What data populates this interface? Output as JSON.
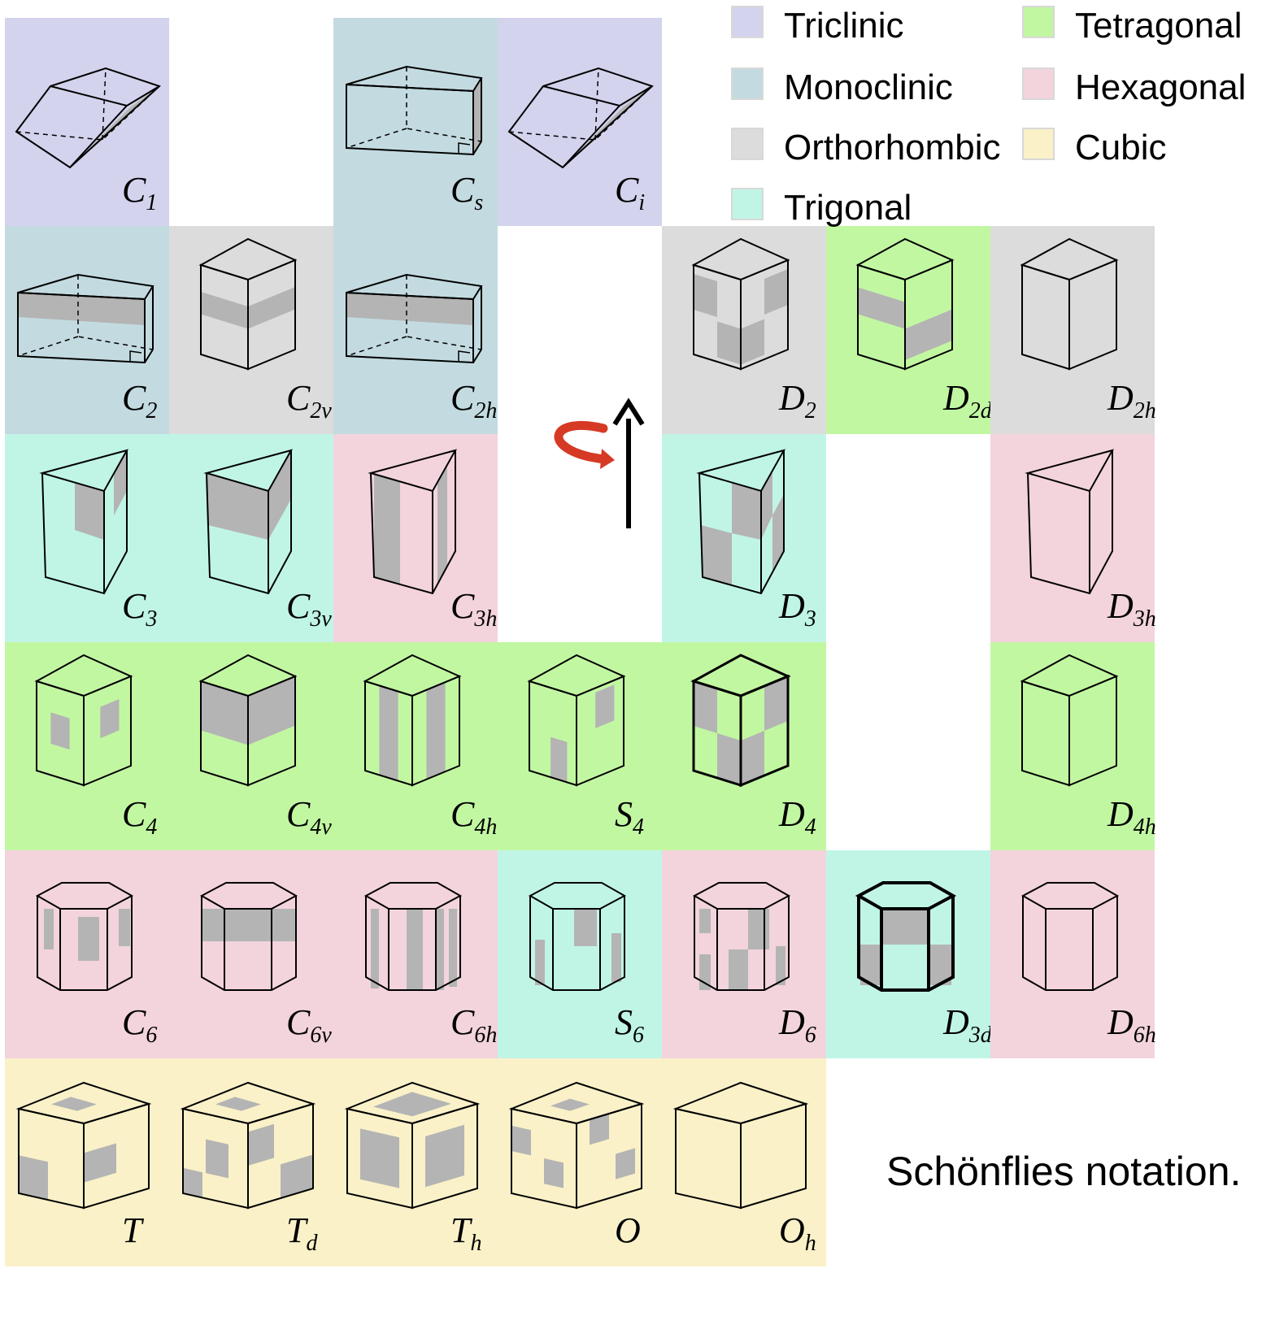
{
  "legend": [
    {
      "label": "Triclinic",
      "color": "#d3d3ee"
    },
    {
      "label": "Monoclinic",
      "color": "#c3dbe0"
    },
    {
      "label": "Orthorhombic",
      "color": "#dcdcdc"
    },
    {
      "label": "Trigonal",
      "color": "#c0f5e6"
    },
    {
      "label": "Tetragonal",
      "color": "#c2f7a2"
    },
    {
      "label": "Hexagonal",
      "color": "#f3d4dc"
    },
    {
      "label": "Cubic",
      "color": "#faf1c8"
    }
  ],
  "colors": {
    "triclinic": "#d3d3ee",
    "monoclinic": "#c3dbe0",
    "orthorhombic": "#dcdcdc",
    "trigonal": "#c0f5e6",
    "tetragonal": "#c2f7a2",
    "hexagonal": "#f3d4dc",
    "cubic": "#faf1c8",
    "shade": "#b4b4b4",
    "arrow_curl": "#d63a25"
  },
  "caption": "Schönflies notation.",
  "cells": [
    {
      "id": "C1",
      "main": "C",
      "sub": "1",
      "system": "triclinic",
      "shape": "rhomb"
    },
    {
      "id": "Cs",
      "main": "C",
      "sub": "s",
      "system": "monoclinic",
      "shape": "box-dashed"
    },
    {
      "id": "Ci",
      "main": "C",
      "sub": "i",
      "system": "triclinic",
      "shape": "rhomb"
    },
    {
      "id": "C2",
      "main": "C",
      "sub": "2",
      "system": "monoclinic",
      "shape": "box-dashed"
    },
    {
      "id": "C2v",
      "main": "C",
      "sub": "2v",
      "system": "orthorhombic",
      "shape": "cube"
    },
    {
      "id": "C2h",
      "main": "C",
      "sub": "2h",
      "system": "monoclinic",
      "shape": "box-dashed"
    },
    {
      "id": "D2",
      "main": "D",
      "sub": "2",
      "system": "orthorhombic",
      "shape": "cube"
    },
    {
      "id": "D2d",
      "main": "D",
      "sub": "2d",
      "system": "tetragonal",
      "shape": "cube"
    },
    {
      "id": "D2h",
      "main": "D",
      "sub": "2h",
      "system": "orthorhombic",
      "shape": "cube"
    },
    {
      "id": "C3",
      "main": "C",
      "sub": "3",
      "system": "trigonal",
      "shape": "prism"
    },
    {
      "id": "C3v",
      "main": "C",
      "sub": "3v",
      "system": "trigonal",
      "shape": "prism"
    },
    {
      "id": "C3h",
      "main": "C",
      "sub": "3h",
      "system": "hexagonal",
      "shape": "prism"
    },
    {
      "id": "D3",
      "main": "D",
      "sub": "3",
      "system": "trigonal",
      "shape": "prism"
    },
    {
      "id": "D3h",
      "main": "D",
      "sub": "3h",
      "system": "hexagonal",
      "shape": "prism"
    },
    {
      "id": "C4",
      "main": "C",
      "sub": "4",
      "system": "tetragonal",
      "shape": "cube"
    },
    {
      "id": "C4v",
      "main": "C",
      "sub": "4v",
      "system": "tetragonal",
      "shape": "cube"
    },
    {
      "id": "C4h",
      "main": "C",
      "sub": "4h",
      "system": "tetragonal",
      "shape": "cube"
    },
    {
      "id": "S4",
      "main": "S",
      "sub": "4",
      "system": "tetragonal",
      "shape": "cube"
    },
    {
      "id": "D4",
      "main": "D",
      "sub": "4",
      "system": "tetragonal",
      "shape": "cube"
    },
    {
      "id": "D4h",
      "main": "D",
      "sub": "4h",
      "system": "tetragonal",
      "shape": "cube"
    },
    {
      "id": "C6",
      "main": "C",
      "sub": "6",
      "system": "hexagonal",
      "shape": "hexprism"
    },
    {
      "id": "C6v",
      "main": "C",
      "sub": "6v",
      "system": "hexagonal",
      "shape": "hexprism"
    },
    {
      "id": "C6h",
      "main": "C",
      "sub": "6h",
      "system": "hexagonal",
      "shape": "hexprism"
    },
    {
      "id": "S6",
      "main": "S",
      "sub": "6",
      "system": "trigonal",
      "shape": "hexprism"
    },
    {
      "id": "D6",
      "main": "D",
      "sub": "6",
      "system": "hexagonal",
      "shape": "hexprism"
    },
    {
      "id": "D3d",
      "main": "D",
      "sub": "3d",
      "system": "trigonal",
      "shape": "hexprism"
    },
    {
      "id": "D6h",
      "main": "D",
      "sub": "6h",
      "system": "hexagonal",
      "shape": "hexprism"
    },
    {
      "id": "T",
      "main": "T",
      "sub": "",
      "system": "cubic",
      "shape": "cube"
    },
    {
      "id": "Td",
      "main": "T",
      "sub": "d",
      "system": "cubic",
      "shape": "cube"
    },
    {
      "id": "Th",
      "main": "T",
      "sub": "h",
      "system": "cubic",
      "shape": "cube"
    },
    {
      "id": "O",
      "main": "O",
      "sub": "",
      "system": "cubic",
      "shape": "cube"
    },
    {
      "id": "Oh",
      "main": "O",
      "sub": "h",
      "system": "cubic",
      "shape": "cube"
    }
  ]
}
